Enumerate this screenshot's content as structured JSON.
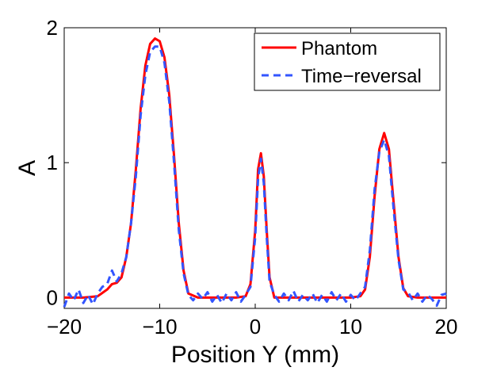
{
  "chart_data": {
    "type": "line",
    "xlabel": "Position Y (mm)",
    "ylabel": "A",
    "xlim": [
      -20,
      20
    ],
    "ylim": [
      -0.08,
      2.0
    ],
    "x_ticks": [
      -20,
      -10,
      0,
      10,
      20
    ],
    "x_tick_labels": [
      "−20",
      "−10",
      "0",
      "10",
      "20"
    ],
    "y_ticks": [
      0,
      1,
      2
    ],
    "y_tick_labels": [
      "0",
      "1",
      "2"
    ],
    "grid": false,
    "legend_position": "top-right",
    "series": [
      {
        "name": "Phantom",
        "color": "#ff0000",
        "style": "solid",
        "x": [
          -20,
          -18,
          -16.5,
          -15.5,
          -15,
          -14.5,
          -14,
          -13.5,
          -13,
          -12.5,
          -12,
          -11.5,
          -11,
          -10.5,
          -10,
          -9.5,
          -9,
          -8.5,
          -8,
          -7.5,
          -7,
          -6,
          -4,
          -2,
          -1,
          -0.5,
          0,
          0.3,
          0.6,
          0.9,
          1.2,
          1.5,
          2,
          3,
          5,
          8,
          10,
          11,
          11.5,
          12,
          12.5,
          13,
          13.5,
          14,
          14.5,
          15,
          15.5,
          16,
          17,
          20
        ],
        "y": [
          0,
          0,
          0.01,
          0.06,
          0.1,
          0.11,
          0.15,
          0.3,
          0.55,
          0.95,
          1.4,
          1.72,
          1.88,
          1.92,
          1.9,
          1.78,
          1.5,
          1.05,
          0.55,
          0.2,
          0.03,
          0,
          0,
          0,
          0.01,
          0.1,
          0.5,
          0.95,
          1.07,
          0.9,
          0.5,
          0.15,
          0,
          0,
          0,
          0,
          0,
          0.01,
          0.06,
          0.3,
          0.75,
          1.1,
          1.22,
          1.1,
          0.7,
          0.3,
          0.07,
          0.01,
          0,
          0
        ]
      },
      {
        "name": "Time−reversal",
        "color": "#3355ff",
        "style": "dashed",
        "x": [
          -20,
          -19.5,
          -19,
          -18.5,
          -18,
          -17.5,
          -17,
          -16.5,
          -16,
          -15.5,
          -15,
          -14.5,
          -14,
          -13.5,
          -13,
          -12.5,
          -12,
          -11.5,
          -11,
          -10.5,
          -10,
          -9.5,
          -9,
          -8.5,
          -8,
          -7.5,
          -7,
          -6.5,
          -6,
          -5.5,
          -5,
          -4.5,
          -4,
          -3.5,
          -3,
          -2.5,
          -2,
          -1.5,
          -1,
          -0.5,
          0,
          0.3,
          0.6,
          0.9,
          1.2,
          1.5,
          2,
          2.5,
          3,
          3.5,
          4,
          4.5,
          5,
          5.5,
          6,
          6.5,
          7,
          7.5,
          8,
          8.5,
          9,
          9.5,
          10,
          10.5,
          11,
          11.5,
          12,
          12.5,
          13,
          13.5,
          14,
          14.5,
          15,
          15.5,
          16,
          16.5,
          17,
          17.5,
          18,
          18.5,
          19,
          19.5,
          20
        ],
        "y": [
          -0.07,
          0.03,
          -0.02,
          0.06,
          -0.04,
          0.02,
          -0.05,
          0.03,
          0.08,
          0.1,
          0.2,
          0.12,
          0.18,
          0.3,
          0.55,
          0.9,
          1.35,
          1.65,
          1.82,
          1.86,
          1.86,
          1.74,
          1.45,
          1.0,
          0.5,
          0.18,
          0.02,
          -0.02,
          0.03,
          -0.01,
          0.04,
          -0.03,
          0.02,
          -0.04,
          0.03,
          -0.02,
          0.04,
          -0.03,
          0.02,
          0.08,
          0.45,
          0.88,
          1.03,
          0.85,
          0.45,
          0.12,
          0.02,
          -0.03,
          0.03,
          -0.02,
          0.05,
          -0.03,
          0.02,
          -0.02,
          0.03,
          -0.04,
          0.02,
          -0.03,
          0.04,
          -0.02,
          0.03,
          -0.03,
          0.02,
          -0.02,
          0.03,
          0.08,
          0.35,
          0.8,
          1.08,
          1.17,
          1.05,
          0.65,
          0.28,
          0.06,
          0.04,
          -0.02,
          0.03,
          -0.03,
          0.02,
          -0.01,
          -0.06,
          0.02,
          0.03
        ]
      }
    ]
  }
}
